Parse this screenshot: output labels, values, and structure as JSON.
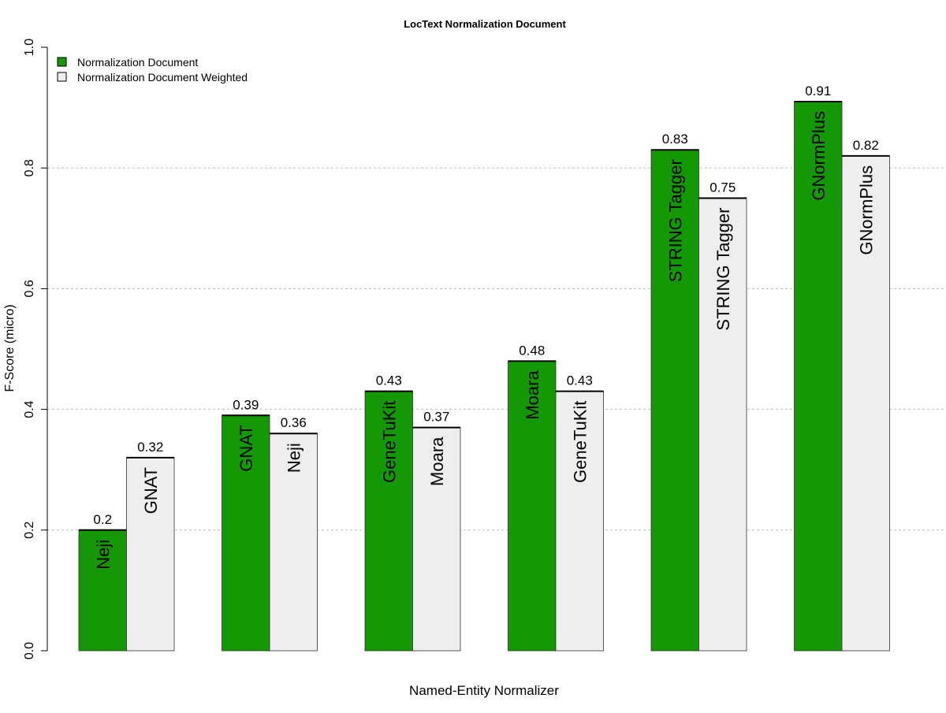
{
  "chart_data": {
    "type": "bar",
    "title": "LocText Normalization Document",
    "xlabel": "Named-Entity Normalizer",
    "ylabel": "F-Score (micro)",
    "ylim": [
      0,
      1
    ],
    "y_ticks": [
      "0.0",
      "0.2",
      "0.4",
      "0.6",
      "0.8",
      "1.0"
    ],
    "grid": "horizontal dotted at 0.2, 0.4, 0.6, 0.8",
    "legend_position": "top-left",
    "groups": 6,
    "series": [
      {
        "name": "Normalization Document",
        "color": "#149806",
        "labels": [
          "Neji",
          "GNAT",
          "GeneTuKit",
          "Moara",
          "STRING Tagger",
          "GNormPlus"
        ],
        "values": [
          0.2,
          0.39,
          0.43,
          0.48,
          0.83,
          0.91
        ],
        "value_labels": [
          "0.2",
          "0.39",
          "0.43",
          "0.48",
          "0.83",
          "0.91"
        ]
      },
      {
        "name": "Normalization Document Weighted",
        "color": "#eeeeee",
        "labels": [
          "GNAT",
          "Neji",
          "Moara",
          "GeneTuKit",
          "STRING Tagger",
          "GNormPlus"
        ],
        "values": [
          0.32,
          0.36,
          0.37,
          0.43,
          0.75,
          0.82
        ],
        "value_labels": [
          "0.32",
          "0.36",
          "0.37",
          "0.43",
          "0.75",
          "0.82"
        ]
      }
    ]
  }
}
